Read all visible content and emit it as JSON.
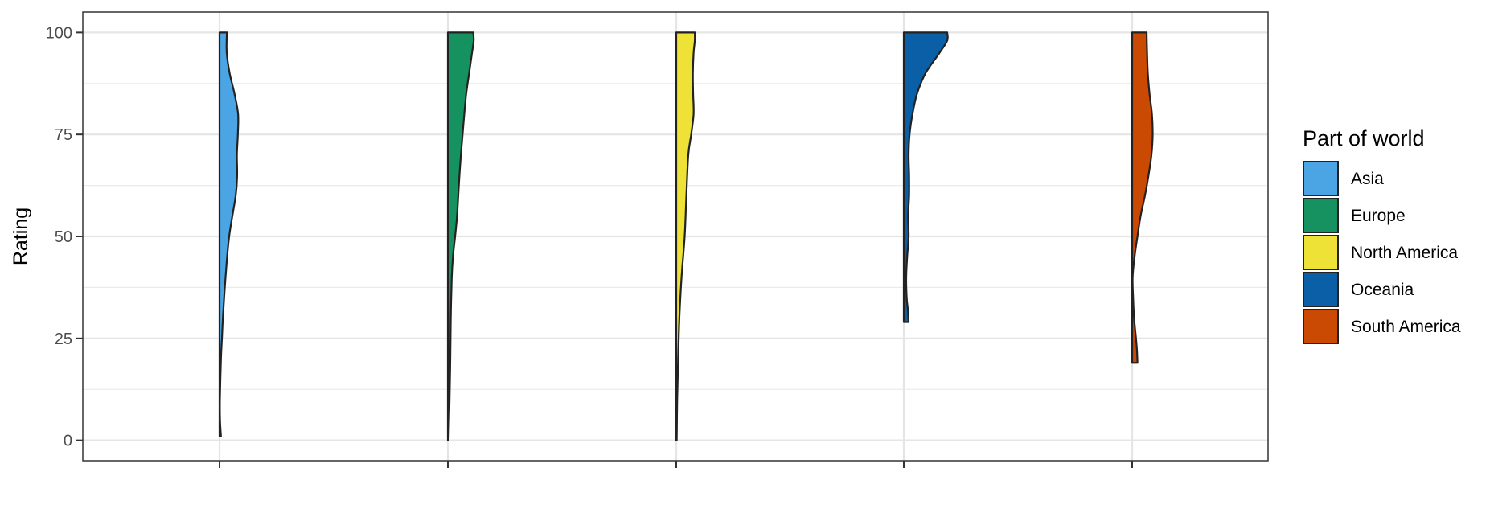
{
  "chart_data": {
    "type": "violin",
    "ylabel": "Rating",
    "xlabel": "",
    "ylim": [
      -5,
      105
    ],
    "yticks": [
      0,
      25,
      50,
      75,
      100
    ],
    "grid": true,
    "legend_title": "Part of world",
    "legend_position": "right",
    "series": [
      {
        "name": "Asia",
        "color": "#4BA4E3",
        "min": 1,
        "max": 100,
        "profile": [
          [
            1,
            0.06
          ],
          [
            5,
            0.02
          ],
          [
            10,
            0.015
          ],
          [
            20,
            0.06
          ],
          [
            25,
            0.1
          ],
          [
            30,
            0.14
          ],
          [
            40,
            0.25
          ],
          [
            50,
            0.4
          ],
          [
            60,
            0.67
          ],
          [
            65,
            0.73
          ],
          [
            70,
            0.72
          ],
          [
            75,
            0.76
          ],
          [
            80,
            0.77
          ],
          [
            85,
            0.62
          ],
          [
            90,
            0.42
          ],
          [
            95,
            0.3
          ],
          [
            99,
            0.3
          ],
          [
            100,
            0.31
          ]
        ]
      },
      {
        "name": "Europe",
        "color": "#169160",
        "min": 0,
        "max": 100,
        "profile": [
          [
            0,
            0.03
          ],
          [
            5,
            0.05
          ],
          [
            10,
            0.07
          ],
          [
            20,
            0.1
          ],
          [
            30,
            0.12
          ],
          [
            40,
            0.16
          ],
          [
            45,
            0.21
          ],
          [
            50,
            0.3
          ],
          [
            55,
            0.38
          ],
          [
            60,
            0.43
          ],
          [
            65,
            0.48
          ],
          [
            70,
            0.54
          ],
          [
            75,
            0.61
          ],
          [
            80,
            0.68
          ],
          [
            85,
            0.76
          ],
          [
            90,
            0.88
          ],
          [
            95,
            1.0
          ],
          [
            98,
            1.07
          ],
          [
            100,
            1.05
          ]
        ]
      },
      {
        "name": "North America",
        "color": "#EDE235",
        "min": 0,
        "max": 100,
        "profile": [
          [
            0,
            0.02
          ],
          [
            10,
            0.04
          ],
          [
            20,
            0.08
          ],
          [
            30,
            0.13
          ],
          [
            40,
            0.22
          ],
          [
            50,
            0.35
          ],
          [
            60,
            0.42
          ],
          [
            70,
            0.5
          ],
          [
            75,
            0.62
          ],
          [
            80,
            0.72
          ],
          [
            85,
            0.7
          ],
          [
            90,
            0.69
          ],
          [
            95,
            0.72
          ],
          [
            98,
            0.77
          ],
          [
            100,
            0.77
          ]
        ]
      },
      {
        "name": "Oceania",
        "color": "#0A5FA6",
        "min": 29,
        "max": 100,
        "profile": [
          [
            29,
            0.2
          ],
          [
            32,
            0.17
          ],
          [
            35,
            0.12
          ],
          [
            40,
            0.1
          ],
          [
            45,
            0.14
          ],
          [
            50,
            0.2
          ],
          [
            55,
            0.18
          ],
          [
            60,
            0.22
          ],
          [
            65,
            0.22
          ],
          [
            70,
            0.2
          ],
          [
            75,
            0.24
          ],
          [
            80,
            0.36
          ],
          [
            85,
            0.55
          ],
          [
            90,
            0.9
          ],
          [
            95,
            1.48
          ],
          [
            98,
            1.8
          ],
          [
            100,
            1.8
          ]
        ]
      },
      {
        "name": "South America",
        "color": "#CB4A03",
        "min": 19,
        "max": 100,
        "profile": [
          [
            19,
            0.22
          ],
          [
            22,
            0.2
          ],
          [
            25,
            0.16
          ],
          [
            30,
            0.08
          ],
          [
            35,
            0.04
          ],
          [
            40,
            0.02
          ],
          [
            45,
            0.1
          ],
          [
            50,
            0.22
          ],
          [
            55,
            0.35
          ],
          [
            60,
            0.53
          ],
          [
            65,
            0.68
          ],
          [
            70,
            0.8
          ],
          [
            75,
            0.85
          ],
          [
            80,
            0.82
          ],
          [
            85,
            0.72
          ],
          [
            90,
            0.65
          ],
          [
            95,
            0.62
          ],
          [
            100,
            0.6
          ]
        ]
      }
    ]
  }
}
